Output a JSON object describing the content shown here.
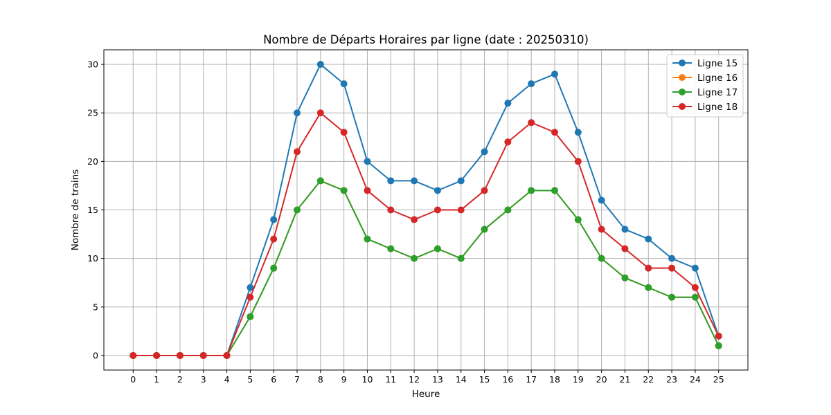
{
  "chart_data": {
    "type": "line",
    "title": "Nombre de Départs Horaires par ligne (date : 20250310)",
    "xlabel": "Heure",
    "ylabel": "Nombre de trains",
    "x": [
      0,
      1,
      2,
      3,
      4,
      5,
      6,
      7,
      8,
      9,
      10,
      11,
      12,
      13,
      14,
      15,
      16,
      17,
      18,
      19,
      20,
      21,
      22,
      23,
      24,
      25
    ],
    "x_tick_labels": [
      "0",
      "1",
      "2",
      "3",
      "4",
      "5",
      "6",
      "7",
      "8",
      "9",
      "10",
      "11",
      "12",
      "13",
      "14",
      "15",
      "16",
      "17",
      "18",
      "19",
      "20",
      "21",
      "22",
      "23",
      "24",
      "25"
    ],
    "xlim": [
      -1.25,
      26.25
    ],
    "ylim": [
      -1.5,
      31.5
    ],
    "y_ticks": [
      0,
      5,
      10,
      15,
      20,
      25,
      30
    ],
    "y_tick_labels": [
      "0",
      "5",
      "10",
      "15",
      "20",
      "25",
      "30"
    ],
    "grid": true,
    "legend_position": "top-right",
    "series": [
      {
        "name": "Ligne 15",
        "color": "#1f77b4",
        "values": [
          0,
          0,
          0,
          0,
          0,
          7,
          14,
          25,
          30,
          28,
          20,
          18,
          18,
          17,
          18,
          21,
          26,
          28,
          29,
          23,
          16,
          13,
          12,
          10,
          9,
          2
        ]
      },
      {
        "name": "Ligne 16",
        "color": "#ff7f0e",
        "values": [
          0,
          0,
          0,
          0,
          0,
          4,
          9,
          15,
          18,
          17,
          12,
          11,
          10,
          11,
          10,
          13,
          15,
          17,
          17,
          14,
          10,
          8,
          7,
          6,
          6,
          1
        ]
      },
      {
        "name": "Ligne 17",
        "color": "#2ca02c",
        "values": [
          0,
          0,
          0,
          0,
          0,
          4,
          9,
          15,
          18,
          17,
          12,
          11,
          10,
          11,
          10,
          13,
          15,
          17,
          17,
          14,
          10,
          8,
          7,
          6,
          6,
          1
        ]
      },
      {
        "name": "Ligne 18",
        "color": "#d62728",
        "values": [
          0,
          0,
          0,
          0,
          0,
          6,
          12,
          21,
          25,
          23,
          17,
          15,
          14,
          15,
          15,
          17,
          22,
          24,
          23,
          20,
          13,
          11,
          9,
          9,
          7,
          2
        ]
      }
    ]
  }
}
